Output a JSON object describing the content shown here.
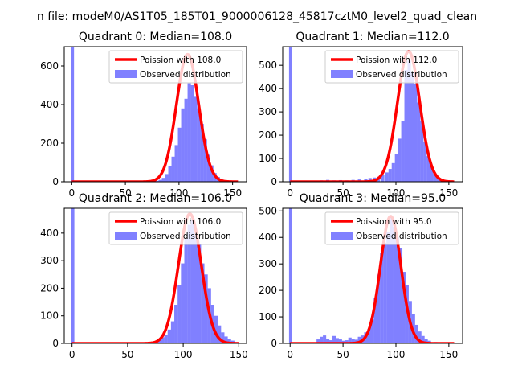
{
  "figure": {
    "suptitle": "n file: modeM0/AS1T05_185T01_9000006128_45817cztM0_level2_quad_clean"
  },
  "colors": {
    "fit_line": "#ff0000",
    "histogram": "#8080ff",
    "axes": "#000000"
  },
  "chart_data": [
    {
      "type": "histogram",
      "title": "Quadrant 0: Median=108.0",
      "xlim": [
        -7,
        163
      ],
      "ylim": [
        0,
        700
      ],
      "xticks": [
        0,
        50,
        100,
        150
      ],
      "yticks": [
        0,
        200,
        400,
        600
      ],
      "legend": {
        "placement": "upper right",
        "entries": [
          "Poission with 108.0",
          "Observed distribution"
        ]
      },
      "bin_width": 3.1,
      "hist_series": {
        "name": "Observed distribution",
        "color": "#8080ff",
        "bins": [
          [
            -1,
            700
          ],
          [
            62,
            3
          ],
          [
            72,
            2
          ],
          [
            78,
            5
          ],
          [
            81,
            10
          ],
          [
            84,
            20
          ],
          [
            87,
            40
          ],
          [
            90,
            80
          ],
          [
            93,
            130
          ],
          [
            96,
            190
          ],
          [
            99,
            280
          ],
          [
            102,
            380
          ],
          [
            105,
            430
          ],
          [
            108,
            510
          ],
          [
            111,
            500
          ],
          [
            114,
            440
          ],
          [
            117,
            380
          ],
          [
            120,
            300
          ],
          [
            123,
            220
          ],
          [
            126,
            140
          ],
          [
            129,
            85
          ],
          [
            132,
            45
          ],
          [
            135,
            25
          ],
          [
            138,
            12
          ],
          [
            141,
            6
          ],
          [
            147,
            2
          ]
        ]
      },
      "fit_series": {
        "name": "Poission with 108.0",
        "mean": 108.0,
        "peak": 660,
        "x_range": [
          0,
          155
        ],
        "color": "#ff0000"
      }
    },
    {
      "type": "histogram",
      "title": "Quadrant 1: Median=112.0",
      "xlim": [
        -7,
        163
      ],
      "ylim": [
        0,
        580
      ],
      "xticks": [
        0,
        50,
        100,
        150
      ],
      "yticks": [
        0,
        100,
        200,
        300,
        400,
        500
      ],
      "legend": {
        "placement": "upper right",
        "entries": [
          "Poission with 112.0",
          "Observed distribution"
        ]
      },
      "bin_width": 3.1,
      "hist_series": {
        "name": "Observed distribution",
        "color": "#8080ff",
        "bins": [
          [
            -1,
            580
          ],
          [
            22,
            5
          ],
          [
            28,
            6
          ],
          [
            34,
            8
          ],
          [
            40,
            6
          ],
          [
            46,
            7
          ],
          [
            52,
            6
          ],
          [
            58,
            8
          ],
          [
            64,
            10
          ],
          [
            70,
            12
          ],
          [
            74,
            16
          ],
          [
            78,
            18
          ],
          [
            82,
            22
          ],
          [
            86,
            28
          ],
          [
            90,
            40
          ],
          [
            93,
            55
          ],
          [
            96,
            80
          ],
          [
            99,
            120
          ],
          [
            102,
            185
          ],
          [
            105,
            260
          ],
          [
            108,
            480
          ],
          [
            111,
            520
          ],
          [
            114,
            470
          ],
          [
            117,
            420
          ],
          [
            120,
            340
          ],
          [
            123,
            260
          ],
          [
            126,
            170
          ],
          [
            129,
            110
          ],
          [
            132,
            65
          ],
          [
            135,
            35
          ],
          [
            138,
            20
          ],
          [
            141,
            12
          ],
          [
            144,
            8
          ],
          [
            150,
            4
          ]
        ]
      },
      "fit_series": {
        "name": "Poission with 112.0",
        "mean": 112.0,
        "peak": 560,
        "x_range": [
          0,
          155
        ],
        "color": "#ff0000"
      }
    },
    {
      "type": "histogram",
      "title": "Quadrant 2: Median=106.0",
      "xlim": [
        -7,
        157
      ],
      "ylim": [
        0,
        490
      ],
      "xticks": [
        0,
        50,
        100,
        150
      ],
      "yticks": [
        0,
        100,
        200,
        300,
        400
      ],
      "legend": {
        "placement": "upper right",
        "entries": [
          "Poission with 106.0",
          "Observed distribution"
        ]
      },
      "bin_width": 3.1,
      "hist_series": {
        "name": "Observed distribution",
        "color": "#8080ff",
        "bins": [
          [
            -1,
            490
          ],
          [
            65,
            3
          ],
          [
            70,
            5
          ],
          [
            74,
            8
          ],
          [
            77,
            14
          ],
          [
            80,
            22
          ],
          [
            83,
            30
          ],
          [
            86,
            50
          ],
          [
            89,
            80
          ],
          [
            92,
            140
          ],
          [
            95,
            210
          ],
          [
            98,
            290
          ],
          [
            101,
            380
          ],
          [
            104,
            430
          ],
          [
            107,
            450
          ],
          [
            110,
            400
          ],
          [
            113,
            360
          ],
          [
            116,
            290
          ],
          [
            119,
            250
          ],
          [
            122,
            200
          ],
          [
            125,
            140
          ],
          [
            128,
            100
          ],
          [
            131,
            65
          ],
          [
            134,
            40
          ],
          [
            137,
            25
          ],
          [
            140,
            15
          ],
          [
            143,
            10
          ],
          [
            146,
            5
          ]
        ]
      },
      "fit_series": {
        "name": "Poission with 106.0",
        "mean": 106.0,
        "peak": 470,
        "x_range": [
          0,
          150
        ],
        "color": "#ff0000"
      }
    },
    {
      "type": "histogram",
      "title": "Quadrant 3: Median=95.0",
      "xlim": [
        -7,
        163
      ],
      "ylim": [
        0,
        510
      ],
      "xticks": [
        0,
        50,
        100,
        150
      ],
      "yticks": [
        0,
        100,
        200,
        300,
        400,
        500
      ],
      "legend": {
        "placement": "upper right",
        "entries": [
          "Poission with 95.0",
          "Observed distribution"
        ]
      },
      "bin_width": 3.1,
      "hist_series": {
        "name": "Observed distribution",
        "color": "#8080ff",
        "bins": [
          [
            -1,
            510
          ],
          [
            25,
            15
          ],
          [
            28,
            25
          ],
          [
            31,
            30
          ],
          [
            34,
            18
          ],
          [
            37,
            12
          ],
          [
            40,
            28
          ],
          [
            43,
            20
          ],
          [
            46,
            15
          ],
          [
            49,
            10
          ],
          [
            52,
            12
          ],
          [
            55,
            22
          ],
          [
            58,
            18
          ],
          [
            61,
            14
          ],
          [
            64,
            25
          ],
          [
            67,
            30
          ],
          [
            70,
            42
          ],
          [
            73,
            55
          ],
          [
            76,
            90
          ],
          [
            79,
            170
          ],
          [
            82,
            260
          ],
          [
            85,
            340
          ],
          [
            88,
            380
          ],
          [
            91,
            420
          ],
          [
            94,
            480
          ],
          [
            97,
            440
          ],
          [
            100,
            400
          ],
          [
            103,
            360
          ],
          [
            106,
            270
          ],
          [
            109,
            220
          ],
          [
            112,
            160
          ],
          [
            115,
            110
          ],
          [
            118,
            70
          ],
          [
            121,
            45
          ],
          [
            124,
            28
          ],
          [
            127,
            16
          ],
          [
            130,
            10
          ],
          [
            136,
            5
          ]
        ]
      },
      "fit_series": {
        "name": "Poission with 95.0",
        "mean": 95.0,
        "peak": 480,
        "x_range": [
          0,
          155
        ],
        "color": "#ff0000"
      }
    }
  ]
}
